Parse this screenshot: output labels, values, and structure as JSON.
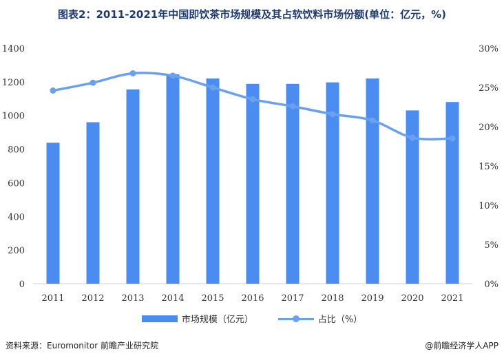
{
  "title": "图表2：2011-2021年中国即饮茶市场规模及其占软饮料市场份额(单位：亿元，%)",
  "source": "资料来源：Euromonitor 前瞻产业研究院",
  "credit": "@前瞻经济学人APP",
  "chart_data": {
    "type": "bar+line",
    "categories": [
      "2011",
      "2012",
      "2013",
      "2014",
      "2015",
      "2016",
      "2017",
      "2018",
      "2019",
      "2020",
      "2021"
    ],
    "series": [
      {
        "name": "市场规模（亿元）",
        "type": "bar",
        "axis": "left",
        "values": [
          838,
          960,
          1155,
          1245,
          1220,
          1188,
          1188,
          1197,
          1220,
          1030,
          1080
        ]
      },
      {
        "name": "占比（%）",
        "type": "line",
        "axis": "right",
        "values": [
          24.6,
          25.6,
          26.8,
          26.5,
          25.0,
          23.5,
          22.6,
          21.6,
          20.8,
          18.6,
          18.5
        ]
      }
    ],
    "left_axis": {
      "min": 0,
      "max": 1400,
      "ticks": [
        "0",
        "200",
        "400",
        "600",
        "800",
        "1000",
        "1200",
        "1400"
      ]
    },
    "right_axis": {
      "min": 0,
      "max": 30,
      "ticks": [
        "0%",
        "5%",
        "10%",
        "15%",
        "20%",
        "25%",
        "30%"
      ]
    },
    "grid": false,
    "legend": "bottom",
    "colors": {
      "bar": "#4a8cf0",
      "line": "#6aa1ef"
    }
  }
}
